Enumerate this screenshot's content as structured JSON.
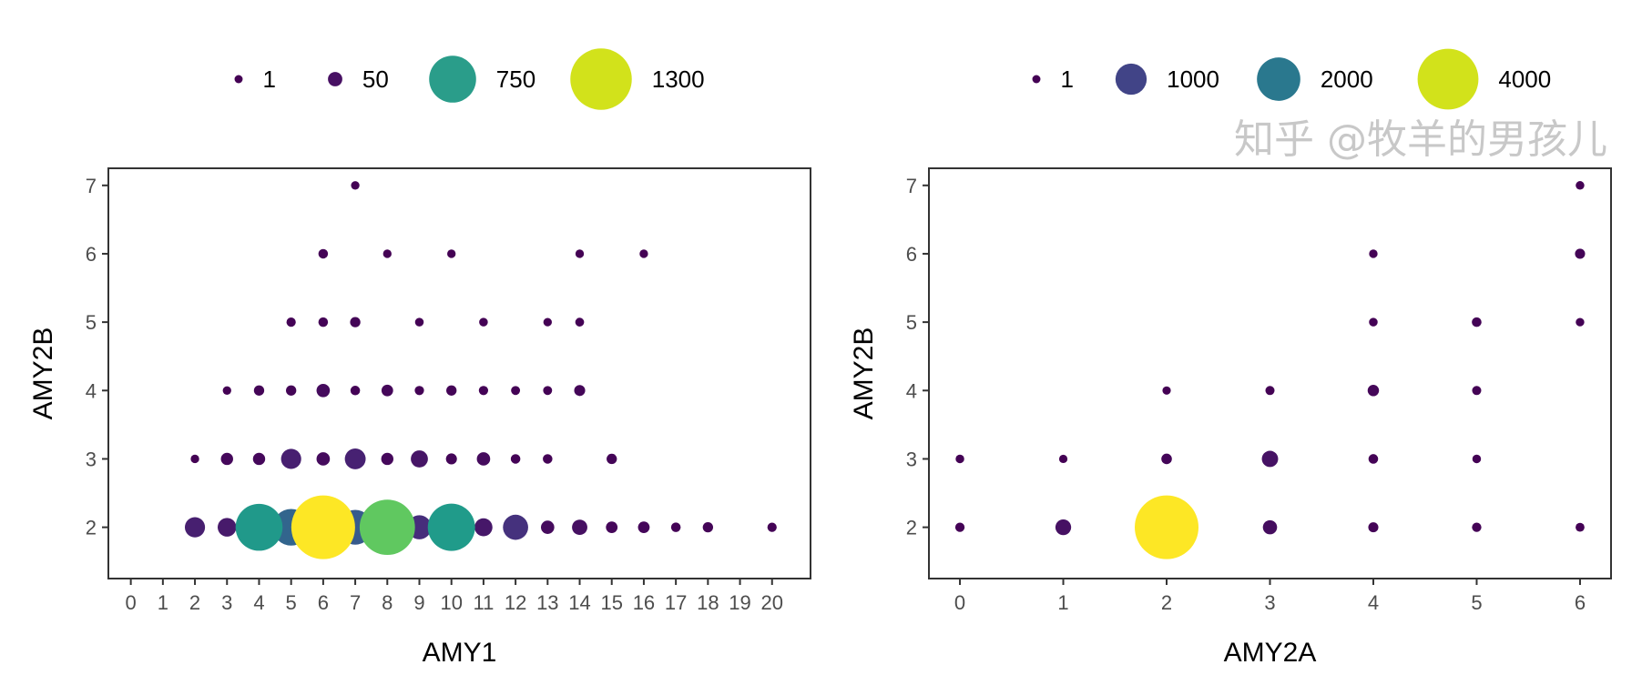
{
  "chart_data": [
    {
      "type": "scatter",
      "xlabel": "AMY1",
      "ylabel": "AMY2B",
      "xticks": [
        "0",
        "1",
        "2",
        "3",
        "4",
        "5",
        "6",
        "7",
        "8",
        "9",
        "10",
        "11",
        "12",
        "13",
        "14",
        "15",
        "16",
        "17",
        "18",
        "19",
        "20"
      ],
      "yticks": [
        "2",
        "3",
        "4",
        "5",
        "6",
        "7"
      ],
      "xlim": [
        -0.7,
        21.2
      ],
      "ylim": [
        1.25,
        7.25
      ],
      "grid": false,
      "legend_position": "top",
      "legend": [
        {
          "label": "1",
          "value": 1,
          "color": "#440154"
        },
        {
          "label": "50",
          "value": 50,
          "color": "#471063"
        },
        {
          "label": "750",
          "value": 750,
          "color": "#2a9d8a"
        },
        {
          "label": "1300",
          "value": 1300,
          "color": "#d2e21b"
        }
      ],
      "points": [
        {
          "x": 2,
          "y": 2,
          "n": 120
        },
        {
          "x": 3,
          "y": 2,
          "n": 100
        },
        {
          "x": 4,
          "y": 2,
          "n": 750
        },
        {
          "x": 5,
          "y": 2,
          "n": 450
        },
        {
          "x": 6,
          "y": 2,
          "n": 1400
        },
        {
          "x": 7,
          "y": 2,
          "n": 400
        },
        {
          "x": 8,
          "y": 2,
          "n": 1050
        },
        {
          "x": 9,
          "y": 2,
          "n": 180
        },
        {
          "x": 10,
          "y": 2,
          "n": 760
        },
        {
          "x": 11,
          "y": 2,
          "n": 90
        },
        {
          "x": 12,
          "y": 2,
          "n": 200
        },
        {
          "x": 13,
          "y": 2,
          "n": 40
        },
        {
          "x": 14,
          "y": 2,
          "n": 60
        },
        {
          "x": 15,
          "y": 2,
          "n": 25
        },
        {
          "x": 16,
          "y": 2,
          "n": 25
        },
        {
          "x": 17,
          "y": 2,
          "n": 10
        },
        {
          "x": 18,
          "y": 2,
          "n": 15
        },
        {
          "x": 20,
          "y": 2,
          "n": 8
        },
        {
          "x": 2,
          "y": 3,
          "n": 3
        },
        {
          "x": 3,
          "y": 3,
          "n": 30
        },
        {
          "x": 4,
          "y": 3,
          "n": 30
        },
        {
          "x": 5,
          "y": 3,
          "n": 120
        },
        {
          "x": 6,
          "y": 3,
          "n": 40
        },
        {
          "x": 7,
          "y": 3,
          "n": 130
        },
        {
          "x": 8,
          "y": 3,
          "n": 30
        },
        {
          "x": 9,
          "y": 3,
          "n": 80
        },
        {
          "x": 10,
          "y": 3,
          "n": 20
        },
        {
          "x": 11,
          "y": 3,
          "n": 40
        },
        {
          "x": 12,
          "y": 3,
          "n": 10
        },
        {
          "x": 13,
          "y": 3,
          "n": 10
        },
        {
          "x": 15,
          "y": 3,
          "n": 15
        },
        {
          "x": 3,
          "y": 4,
          "n": 3
        },
        {
          "x": 4,
          "y": 4,
          "n": 15
        },
        {
          "x": 5,
          "y": 4,
          "n": 15
        },
        {
          "x": 6,
          "y": 4,
          "n": 40
        },
        {
          "x": 7,
          "y": 4,
          "n": 10
        },
        {
          "x": 8,
          "y": 4,
          "n": 25
        },
        {
          "x": 9,
          "y": 4,
          "n": 8
        },
        {
          "x": 10,
          "y": 4,
          "n": 15
        },
        {
          "x": 11,
          "y": 4,
          "n": 8
        },
        {
          "x": 12,
          "y": 4,
          "n": 6
        },
        {
          "x": 13,
          "y": 4,
          "n": 6
        },
        {
          "x": 14,
          "y": 4,
          "n": 20
        },
        {
          "x": 5,
          "y": 5,
          "n": 8
        },
        {
          "x": 6,
          "y": 5,
          "n": 10
        },
        {
          "x": 7,
          "y": 5,
          "n": 15
        },
        {
          "x": 9,
          "y": 5,
          "n": 4
        },
        {
          "x": 11,
          "y": 5,
          "n": 4
        },
        {
          "x": 13,
          "y": 5,
          "n": 3
        },
        {
          "x": 14,
          "y": 5,
          "n": 5
        },
        {
          "x": 6,
          "y": 6,
          "n": 10
        },
        {
          "x": 8,
          "y": 6,
          "n": 3
        },
        {
          "x": 10,
          "y": 6,
          "n": 3
        },
        {
          "x": 14,
          "y": 6,
          "n": 3
        },
        {
          "x": 16,
          "y": 6,
          "n": 3
        },
        {
          "x": 7,
          "y": 7,
          "n": 3
        }
      ]
    },
    {
      "type": "scatter",
      "xlabel": "AMY2A",
      "ylabel": "AMY2B",
      "xticks": [
        "0",
        "1",
        "2",
        "3",
        "4",
        "5",
        "6"
      ],
      "yticks": [
        "2",
        "3",
        "4",
        "5",
        "6",
        "7"
      ],
      "xlim": [
        -0.3,
        6.3
      ],
      "ylim": [
        1.25,
        7.25
      ],
      "grid": false,
      "legend_position": "top",
      "legend": [
        {
          "label": "1",
          "value": 1,
          "color": "#440154"
        },
        {
          "label": "1000",
          "value": 1000,
          "color": "#414487"
        },
        {
          "label": "2000",
          "value": 2000,
          "color": "#2a788e"
        },
        {
          "label": "4000",
          "value": 4000,
          "color": "#d2e21b"
        }
      ],
      "points": [
        {
          "x": 0,
          "y": 2,
          "n": 25
        },
        {
          "x": 1,
          "y": 2,
          "n": 200
        },
        {
          "x": 2,
          "y": 2,
          "n": 4400
        },
        {
          "x": 3,
          "y": 2,
          "n": 150
        },
        {
          "x": 4,
          "y": 2,
          "n": 40
        },
        {
          "x": 5,
          "y": 2,
          "n": 25
        },
        {
          "x": 6,
          "y": 2,
          "n": 15
        },
        {
          "x": 0,
          "y": 3,
          "n": 10
        },
        {
          "x": 1,
          "y": 3,
          "n": 5
        },
        {
          "x": 2,
          "y": 3,
          "n": 50
        },
        {
          "x": 3,
          "y": 3,
          "n": 220
        },
        {
          "x": 4,
          "y": 3,
          "n": 30
        },
        {
          "x": 5,
          "y": 3,
          "n": 10
        },
        {
          "x": 2,
          "y": 4,
          "n": 5
        },
        {
          "x": 3,
          "y": 4,
          "n": 20
        },
        {
          "x": 4,
          "y": 4,
          "n": 70
        },
        {
          "x": 5,
          "y": 4,
          "n": 20
        },
        {
          "x": 4,
          "y": 5,
          "n": 10
        },
        {
          "x": 5,
          "y": 5,
          "n": 30
        },
        {
          "x": 6,
          "y": 5,
          "n": 8
        },
        {
          "x": 4,
          "y": 6,
          "n": 8
        },
        {
          "x": 6,
          "y": 6,
          "n": 40
        },
        {
          "x": 6,
          "y": 7,
          "n": 10
        }
      ]
    }
  ],
  "watermark": "知乎 @牧羊的男孩儿"
}
